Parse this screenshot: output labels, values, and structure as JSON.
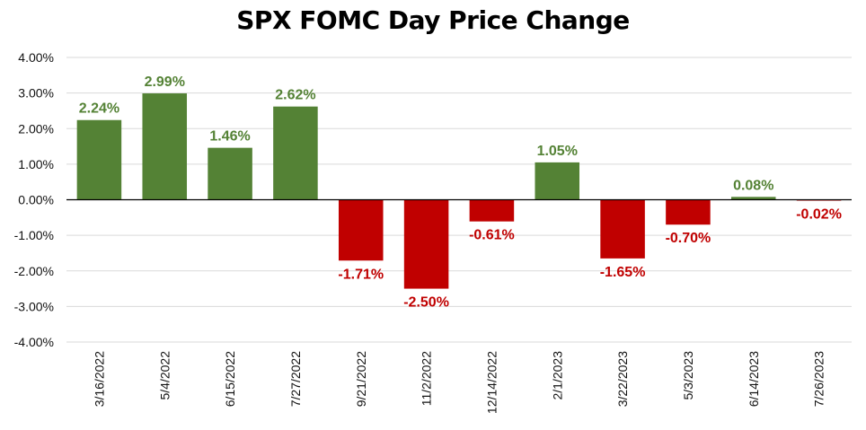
{
  "chart_data": {
    "type": "bar",
    "title": "SPX FOMC Day Price Change",
    "xlabel": "",
    "ylabel": "",
    "categories": [
      "3/16/2022",
      "5/4/2022",
      "6/15/2022",
      "7/27/2022",
      "9/21/2022",
      "11/2/2022",
      "12/14/2022",
      "2/1/2023",
      "3/22/2023",
      "5/3/2023",
      "6/14/2023",
      "7/26/2023"
    ],
    "values": [
      2.24,
      2.99,
      1.46,
      2.62,
      -1.71,
      -2.5,
      -0.61,
      1.05,
      -1.65,
      -0.7,
      0.08,
      -0.02
    ],
    "data_labels": [
      "2.24%",
      "2.99%",
      "1.46%",
      "2.62%",
      "-1.71%",
      "-2.50%",
      "-0.61%",
      "1.05%",
      "-1.65%",
      "-0.70%",
      "0.08%",
      "-0.02%"
    ],
    "ylim": [
      -4,
      4
    ],
    "yticks": [
      "4.00%",
      "3.00%",
      "2.00%",
      "1.00%",
      "0.00%",
      "-1.00%",
      "-2.00%",
      "-3.00%",
      "-4.00%"
    ],
    "grid": true,
    "legend": "none",
    "colors": {
      "positive": "#548235",
      "negative": "#C00000"
    }
  }
}
